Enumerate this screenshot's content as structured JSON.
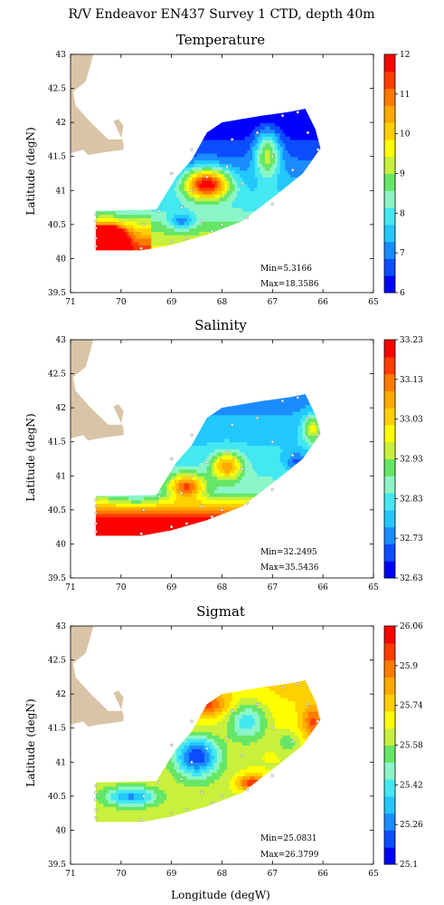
{
  "figure_title": "R/V Endeavor EN437 Survey 1 CTD, depth 40m",
  "xlabel": "Longitude (degW)",
  "chart_data": [
    {
      "type": "heatmap",
      "title": "Temperature",
      "ylabel": "Latitude (degN)",
      "xlabel": "",
      "xticks": [
        "71",
        "70",
        "69",
        "68",
        "67",
        "66",
        "65"
      ],
      "yticks": [
        "43",
        "42.5",
        "42",
        "41.5",
        "41",
        "40.5",
        "40",
        "39.5"
      ],
      "xlim": [
        71,
        65
      ],
      "ylim": [
        39.5,
        43
      ],
      "min_label": "Min=5.3166",
      "max_label": "Max=18.3586",
      "colorbar_ticks": [
        "12",
        "11",
        "10",
        "9",
        "8",
        "7",
        "6"
      ],
      "colorbar_range": [
        6,
        12
      ],
      "field": "temperature",
      "stations": [
        [
          -70.5,
          40.65
        ],
        [
          -70.5,
          40.55
        ],
        [
          -70.5,
          40.45
        ],
        [
          -70.5,
          40.3
        ],
        [
          -70.5,
          40.18
        ],
        [
          -69.6,
          40.15
        ],
        [
          -69.55,
          40.5
        ],
        [
          -69.25,
          40.7
        ],
        [
          -69.0,
          40.25
        ],
        [
          -68.8,
          40.75
        ],
        [
          -68.7,
          40.3
        ],
        [
          -68.6,
          41.0
        ],
        [
          -68.4,
          40.55
        ],
        [
          -68.3,
          41.2
        ],
        [
          -68.2,
          40.4
        ],
        [
          -68.0,
          40.5
        ],
        [
          -67.9,
          41.35
        ],
        [
          -67.8,
          41.75
        ],
        [
          -67.6,
          41.1
        ],
        [
          -67.5,
          40.6
        ],
        [
          -67.3,
          41.85
        ],
        [
          -67.0,
          41.5
        ],
        [
          -67.0,
          40.8
        ],
        [
          -66.8,
          42.1
        ],
        [
          -66.6,
          41.3
        ],
        [
          -66.5,
          42.15
        ],
        [
          -66.3,
          41.85
        ],
        [
          -66.1,
          41.6
        ],
        [
          -68.6,
          41.6
        ],
        [
          -69.0,
          41.25
        ]
      ]
    },
    {
      "type": "heatmap",
      "title": "Salinity",
      "ylabel": "Latitude (degN)",
      "xlabel": "",
      "xticks": [
        "71",
        "70",
        "69",
        "68",
        "67",
        "66",
        "65"
      ],
      "yticks": [
        "43",
        "42.5",
        "42",
        "41.5",
        "41",
        "40.5",
        "40",
        "39.5"
      ],
      "xlim": [
        71,
        65
      ],
      "ylim": [
        39.5,
        43
      ],
      "min_label": "Min=32.2495",
      "max_label": "Max=35.5436",
      "colorbar_ticks": [
        "33.23",
        "33.13",
        "33.03",
        "32.93",
        "32.83",
        "32.73",
        "32.63"
      ],
      "colorbar_range": [
        32.63,
        33.23
      ],
      "field": "salinity",
      "stations": [
        [
          -70.5,
          40.65
        ],
        [
          -70.5,
          40.55
        ],
        [
          -70.5,
          40.45
        ],
        [
          -70.5,
          40.3
        ],
        [
          -70.5,
          40.18
        ],
        [
          -69.6,
          40.15
        ],
        [
          -69.55,
          40.5
        ],
        [
          -69.25,
          40.7
        ],
        [
          -69.0,
          40.25
        ],
        [
          -68.8,
          40.75
        ],
        [
          -68.7,
          40.3
        ],
        [
          -68.6,
          41.0
        ],
        [
          -68.4,
          40.55
        ],
        [
          -68.3,
          41.2
        ],
        [
          -68.2,
          40.4
        ],
        [
          -68.0,
          40.5
        ],
        [
          -67.9,
          41.35
        ],
        [
          -67.8,
          41.75
        ],
        [
          -67.6,
          41.1
        ],
        [
          -67.5,
          40.6
        ],
        [
          -67.3,
          41.85
        ],
        [
          -67.0,
          41.5
        ],
        [
          -67.0,
          40.8
        ],
        [
          -66.8,
          42.1
        ],
        [
          -66.6,
          41.3
        ],
        [
          -66.5,
          42.15
        ],
        [
          -66.3,
          41.85
        ],
        [
          -66.1,
          41.6
        ],
        [
          -68.6,
          41.6
        ],
        [
          -69.0,
          41.25
        ]
      ]
    },
    {
      "type": "heatmap",
      "title": "Sigmat",
      "ylabel": "Latitude (degN)",
      "xlabel": "Longitude (degW)",
      "xticks": [
        "71",
        "70",
        "69",
        "68",
        "67",
        "66",
        "65"
      ],
      "yticks": [
        "43",
        "42.5",
        "42",
        "41.5",
        "41",
        "40.5",
        "40",
        "39.5"
      ],
      "xlim": [
        71,
        65
      ],
      "ylim": [
        39.5,
        43
      ],
      "min_label": "Min=25.0831",
      "max_label": "Max=26.3799",
      "colorbar_ticks": [
        "26.06",
        "25.9",
        "25.74",
        "25.58",
        "25.42",
        "25.26",
        "25.1"
      ],
      "colorbar_range": [
        25.1,
        26.06
      ],
      "field": "sigmat",
      "stations": [
        [
          -70.5,
          40.65
        ],
        [
          -70.5,
          40.55
        ],
        [
          -70.5,
          40.45
        ],
        [
          -70.5,
          40.3
        ],
        [
          -70.5,
          40.18
        ],
        [
          -69.6,
          40.15
        ],
        [
          -69.55,
          40.5
        ],
        [
          -69.25,
          40.7
        ],
        [
          -69.0,
          40.25
        ],
        [
          -68.8,
          40.75
        ],
        [
          -68.7,
          40.3
        ],
        [
          -68.6,
          41.0
        ],
        [
          -68.4,
          40.55
        ],
        [
          -68.3,
          41.2
        ],
        [
          -68.2,
          40.4
        ],
        [
          -68.0,
          40.5
        ],
        [
          -67.9,
          41.35
        ],
        [
          -67.8,
          41.75
        ],
        [
          -67.6,
          41.1
        ],
        [
          -67.5,
          40.6
        ],
        [
          -67.3,
          41.85
        ],
        [
          -67.0,
          41.5
        ],
        [
          -67.0,
          40.8
        ],
        [
          -66.8,
          42.1
        ],
        [
          -66.6,
          41.3
        ],
        [
          -66.5,
          42.15
        ],
        [
          -66.3,
          41.85
        ],
        [
          -66.1,
          41.6
        ],
        [
          -68.6,
          41.6
        ],
        [
          -69.0,
          41.25
        ]
      ]
    }
  ],
  "colormap": [
    "#0000ff",
    "#0c4dff",
    "#1a8cff",
    "#22c7ff",
    "#44e8f0",
    "#8cf5c8",
    "#66e666",
    "#c8f03c",
    "#ffff00",
    "#ffd000",
    "#ffaa00",
    "#ff7a00",
    "#ff3c00",
    "#ff0000"
  ],
  "land_color": "#d9c4a7"
}
